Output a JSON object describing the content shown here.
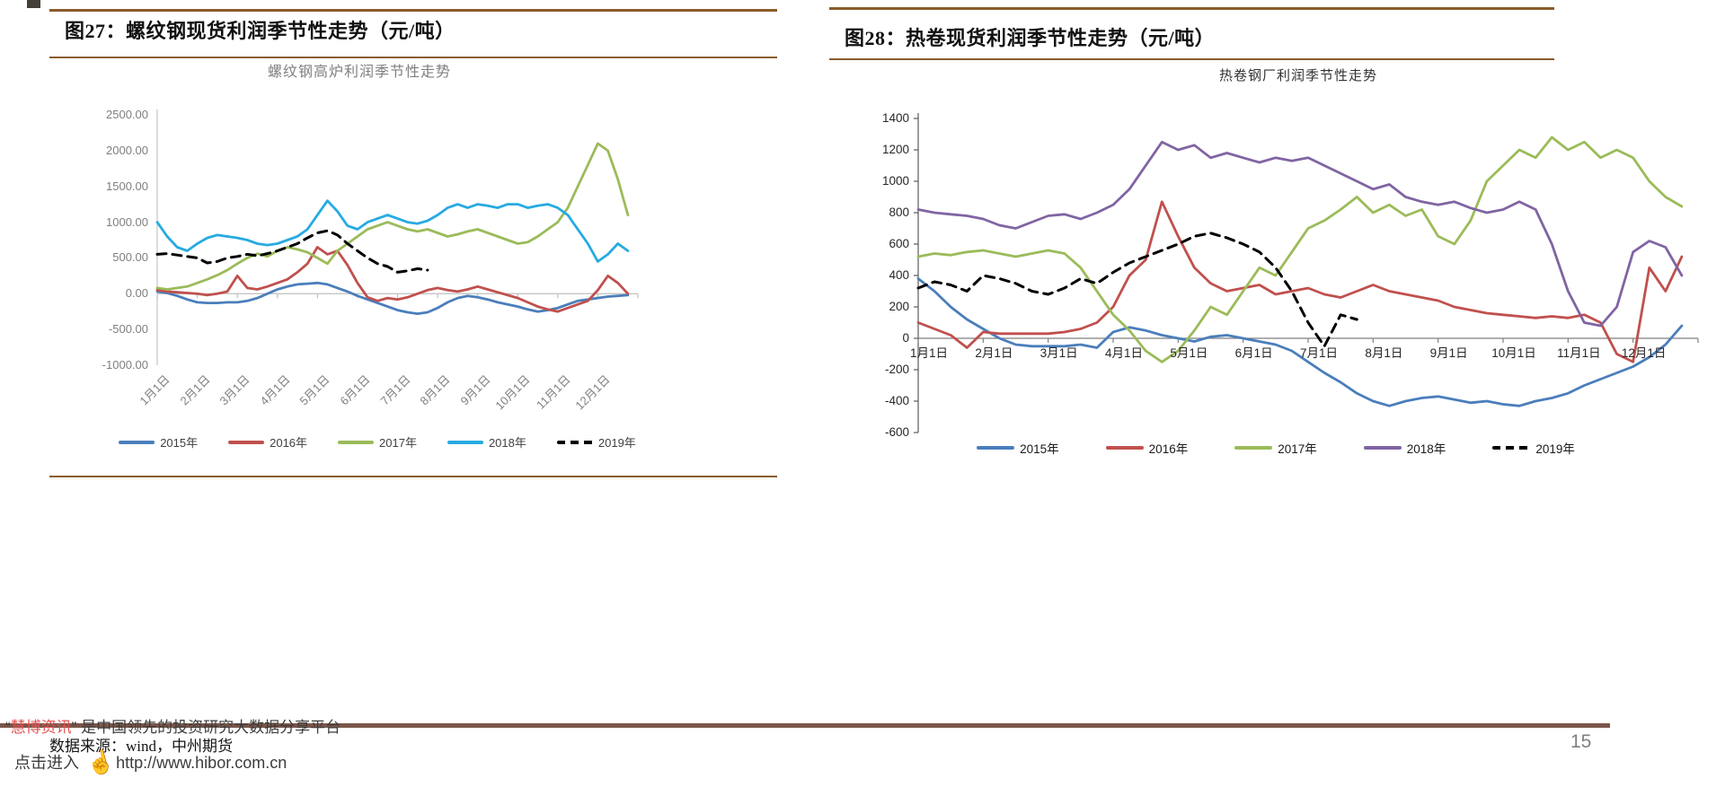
{
  "figures": [
    {
      "caption": "图27：螺纹钢现货利润季节性走势（元/吨）"
    },
    {
      "caption": "图28：热卷现货利润季节性走势（元/吨）"
    }
  ],
  "footer": {
    "watermark_quote_open": "“",
    "watermark_brand": "慧博资讯",
    "watermark_quote_close": "”",
    "watermark_tagline": " 是中国领先的投资研究大数据分享平台",
    "data_source": "数据来源：wind，中州期货",
    "click_enter": "点击进入",
    "watermark_url": "http://www.hibor.com.cn",
    "hand_icon": "☝",
    "page_number": "15"
  },
  "colors": {
    "header_rule": "#8a5c2a",
    "footer_rule": "#7a564a",
    "series_2015": "#4a7ebb",
    "series_2016": "#c0504d",
    "series_2017": "#9bbb59",
    "series_2018_left": "#27aae1",
    "series_2018_right": "#8064a2",
    "series_2019": "#000000"
  },
  "chart_data": [
    {
      "type": "line",
      "title": "螺纹钢高炉利润季节性走势",
      "xlabel": "",
      "ylabel": "",
      "ylim": [
        -1000,
        2500
      ],
      "grid": false,
      "legend_position": "bottom",
      "y_tick_values": [
        2500,
        2000,
        1500,
        1000,
        500,
        0,
        -500,
        -1000
      ],
      "y_tick_labels": [
        "2500.00",
        "2000.00",
        "1500.00",
        "1000.00",
        "500.00",
        "0.00",
        "-500.00",
        "-1000.00"
      ],
      "x_tick_labels": [
        "1月1日",
        "2月1日",
        "3月1日",
        "4月1日",
        "5月1日",
        "6月1日",
        "7月1日",
        "8月1日",
        "9月1日",
        "10月1日",
        "11月1日",
        "12月1日"
      ],
      "points_per_month": 4,
      "series": [
        {
          "name": "2015年",
          "color": "#4a7ebb",
          "dash": false,
          "values": [
            30,
            10,
            -30,
            -80,
            -120,
            -130,
            -130,
            -120,
            -120,
            -100,
            -60,
            0,
            60,
            100,
            130,
            140,
            150,
            130,
            80,
            30,
            -30,
            -80,
            -130,
            -180,
            -230,
            -260,
            -280,
            -260,
            -200,
            -120,
            -60,
            -30,
            -50,
            -80,
            -120,
            -150,
            -180,
            -220,
            -250,
            -230,
            -200,
            -150,
            -100,
            -80,
            -60,
            -40,
            -30,
            -20
          ]
        },
        {
          "name": "2016年",
          "color": "#c0504d",
          "dash": false,
          "values": [
            50,
            30,
            20,
            10,
            0,
            -20,
            0,
            30,
            250,
            80,
            60,
            100,
            150,
            200,
            300,
            420,
            650,
            550,
            600,
            400,
            150,
            -50,
            -100,
            -60,
            -80,
            -50,
            0,
            50,
            80,
            50,
            30,
            60,
            100,
            60,
            20,
            -20,
            -60,
            -120,
            -180,
            -220,
            -250,
            -200,
            -150,
            -100,
            50,
            250,
            150,
            0
          ]
        },
        {
          "name": "2017年",
          "color": "#9bbb59",
          "dash": false,
          "values": [
            80,
            60,
            80,
            100,
            150,
            200,
            260,
            330,
            420,
            500,
            560,
            520,
            600,
            650,
            620,
            580,
            500,
            420,
            600,
            700,
            800,
            900,
            950,
            1000,
            950,
            900,
            870,
            900,
            850,
            800,
            830,
            870,
            900,
            850,
            800,
            750,
            700,
            720,
            800,
            900,
            1000,
            1200,
            1500,
            1800,
            2100,
            2000,
            1600,
            1100
          ]
        },
        {
          "name": "2018年",
          "color": "#27aae1",
          "dash": false,
          "values": [
            1000,
            800,
            650,
            600,
            700,
            780,
            820,
            800,
            780,
            750,
            700,
            680,
            700,
            750,
            800,
            900,
            1100,
            1300,
            1150,
            950,
            900,
            1000,
            1050,
            1100,
            1050,
            1000,
            980,
            1020,
            1100,
            1200,
            1250,
            1200,
            1250,
            1230,
            1200,
            1250,
            1250,
            1200,
            1230,
            1250,
            1200,
            1100,
            900,
            700,
            450,
            550,
            700,
            600
          ]
        },
        {
          "name": "2019年",
          "color": "#000000",
          "dash": true,
          "values": [
            550,
            560,
            540,
            520,
            500,
            430,
            450,
            500,
            520,
            550,
            530,
            560,
            600,
            650,
            700,
            780,
            850,
            880,
            820,
            700,
            600,
            500,
            420,
            380,
            300,
            320,
            350,
            330
          ]
        }
      ]
    },
    {
      "type": "line",
      "title": "热卷钢厂利润季节性走势",
      "xlabel": "",
      "ylabel": "",
      "ylim": [
        -600,
        1400
      ],
      "grid": false,
      "legend_position": "bottom",
      "y_tick_values": [
        1400,
        1200,
        1000,
        800,
        600,
        400,
        200,
        0,
        -200,
        -400,
        -600
      ],
      "y_tick_labels": [
        "1400",
        "1200",
        "1000",
        "800",
        "600",
        "400",
        "200",
        "0",
        "-200",
        "-400",
        "-600"
      ],
      "x_tick_labels": [
        "1月1日",
        "2月1日",
        "3月1日",
        "4月1日",
        "5月1日",
        "6月1日",
        "7月1日",
        "8月1日",
        "9月1日",
        "10月1日",
        "11月1日",
        "12月1日"
      ],
      "points_per_month": 4,
      "series": [
        {
          "name": "2015年",
          "color": "#4a7ebb",
          "dash": false,
          "values": [
            380,
            300,
            200,
            120,
            60,
            0,
            -40,
            -50,
            -50,
            -50,
            -40,
            -60,
            40,
            70,
            50,
            20,
            0,
            -20,
            10,
            20,
            0,
            -20,
            -40,
            -80,
            -150,
            -220,
            -280,
            -350,
            -400,
            -430,
            -400,
            -380,
            -370,
            -390,
            -410,
            -400,
            -420,
            -430,
            -400,
            -380,
            -350,
            -300,
            -260,
            -220,
            -180,
            -120,
            -40,
            80
          ]
        },
        {
          "name": "2016年",
          "color": "#c0504d",
          "dash": false,
          "values": [
            100,
            60,
            20,
            -60,
            40,
            30,
            30,
            30,
            30,
            40,
            60,
            100,
            200,
            400,
            500,
            870,
            650,
            450,
            350,
            300,
            320,
            340,
            280,
            300,
            320,
            280,
            260,
            300,
            340,
            300,
            280,
            260,
            240,
            200,
            180,
            160,
            150,
            140,
            130,
            140,
            130,
            150,
            100,
            -100,
            -150,
            450,
            300,
            520
          ]
        },
        {
          "name": "2017年",
          "color": "#9bbb59",
          "dash": false,
          "values": [
            520,
            540,
            530,
            550,
            560,
            540,
            520,
            540,
            560,
            540,
            450,
            300,
            150,
            50,
            -80,
            -150,
            -80,
            50,
            200,
            150,
            300,
            450,
            400,
            550,
            700,
            750,
            820,
            900,
            800,
            850,
            780,
            820,
            650,
            600,
            750,
            1000,
            1100,
            1200,
            1150,
            1280,
            1200,
            1250,
            1150,
            1200,
            1150,
            1000,
            900,
            840
          ]
        },
        {
          "name": "2018年",
          "color": "#8064a2",
          "dash": false,
          "values": [
            820,
            800,
            790,
            780,
            760,
            720,
            700,
            740,
            780,
            790,
            760,
            800,
            850,
            950,
            1100,
            1250,
            1200,
            1230,
            1150,
            1180,
            1150,
            1120,
            1150,
            1130,
            1150,
            1100,
            1050,
            1000,
            950,
            980,
            900,
            870,
            850,
            870,
            830,
            800,
            820,
            870,
            820,
            600,
            300,
            100,
            80,
            200,
            550,
            620,
            580,
            400
          ]
        },
        {
          "name": "2019年",
          "color": "#000000",
          "dash": true,
          "values": [
            320,
            360,
            340,
            300,
            400,
            380,
            350,
            300,
            280,
            320,
            380,
            350,
            420,
            480,
            520,
            560,
            600,
            650,
            670,
            640,
            600,
            550,
            450,
            300,
            100,
            -50,
            150,
            120
          ]
        }
      ]
    }
  ]
}
